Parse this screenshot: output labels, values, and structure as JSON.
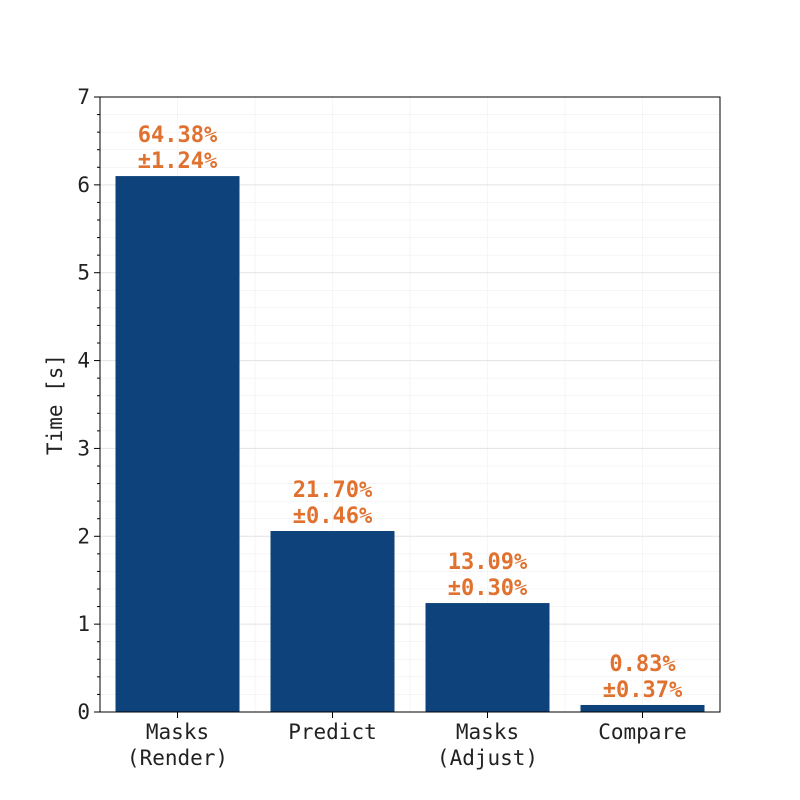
{
  "colors": {
    "bar": "#0d437a",
    "label": "#e0712f",
    "grid": "#e3e3e3",
    "axis": "#000000"
  },
  "chart_data": {
    "type": "bar",
    "categories": [
      [
        "Masks",
        "(Render)"
      ],
      [
        "Predict"
      ],
      [
        "Masks",
        "(Adjust)"
      ],
      [
        "Compare"
      ]
    ],
    "values": [
      6.1,
      2.06,
      1.24,
      0.08
    ],
    "data_labels": [
      [
        "64.38%",
        "±1.24%"
      ],
      [
        "21.70%",
        "±0.46%"
      ],
      [
        "13.09%",
        "±0.30%"
      ],
      [
        "0.83%",
        "±0.37%"
      ]
    ],
    "xlabel": "",
    "ylabel": "Time [s]",
    "ylim": [
      0,
      7
    ],
    "yticks": [
      0,
      1,
      2,
      3,
      4,
      5,
      6,
      7
    ],
    "grid": true
  }
}
